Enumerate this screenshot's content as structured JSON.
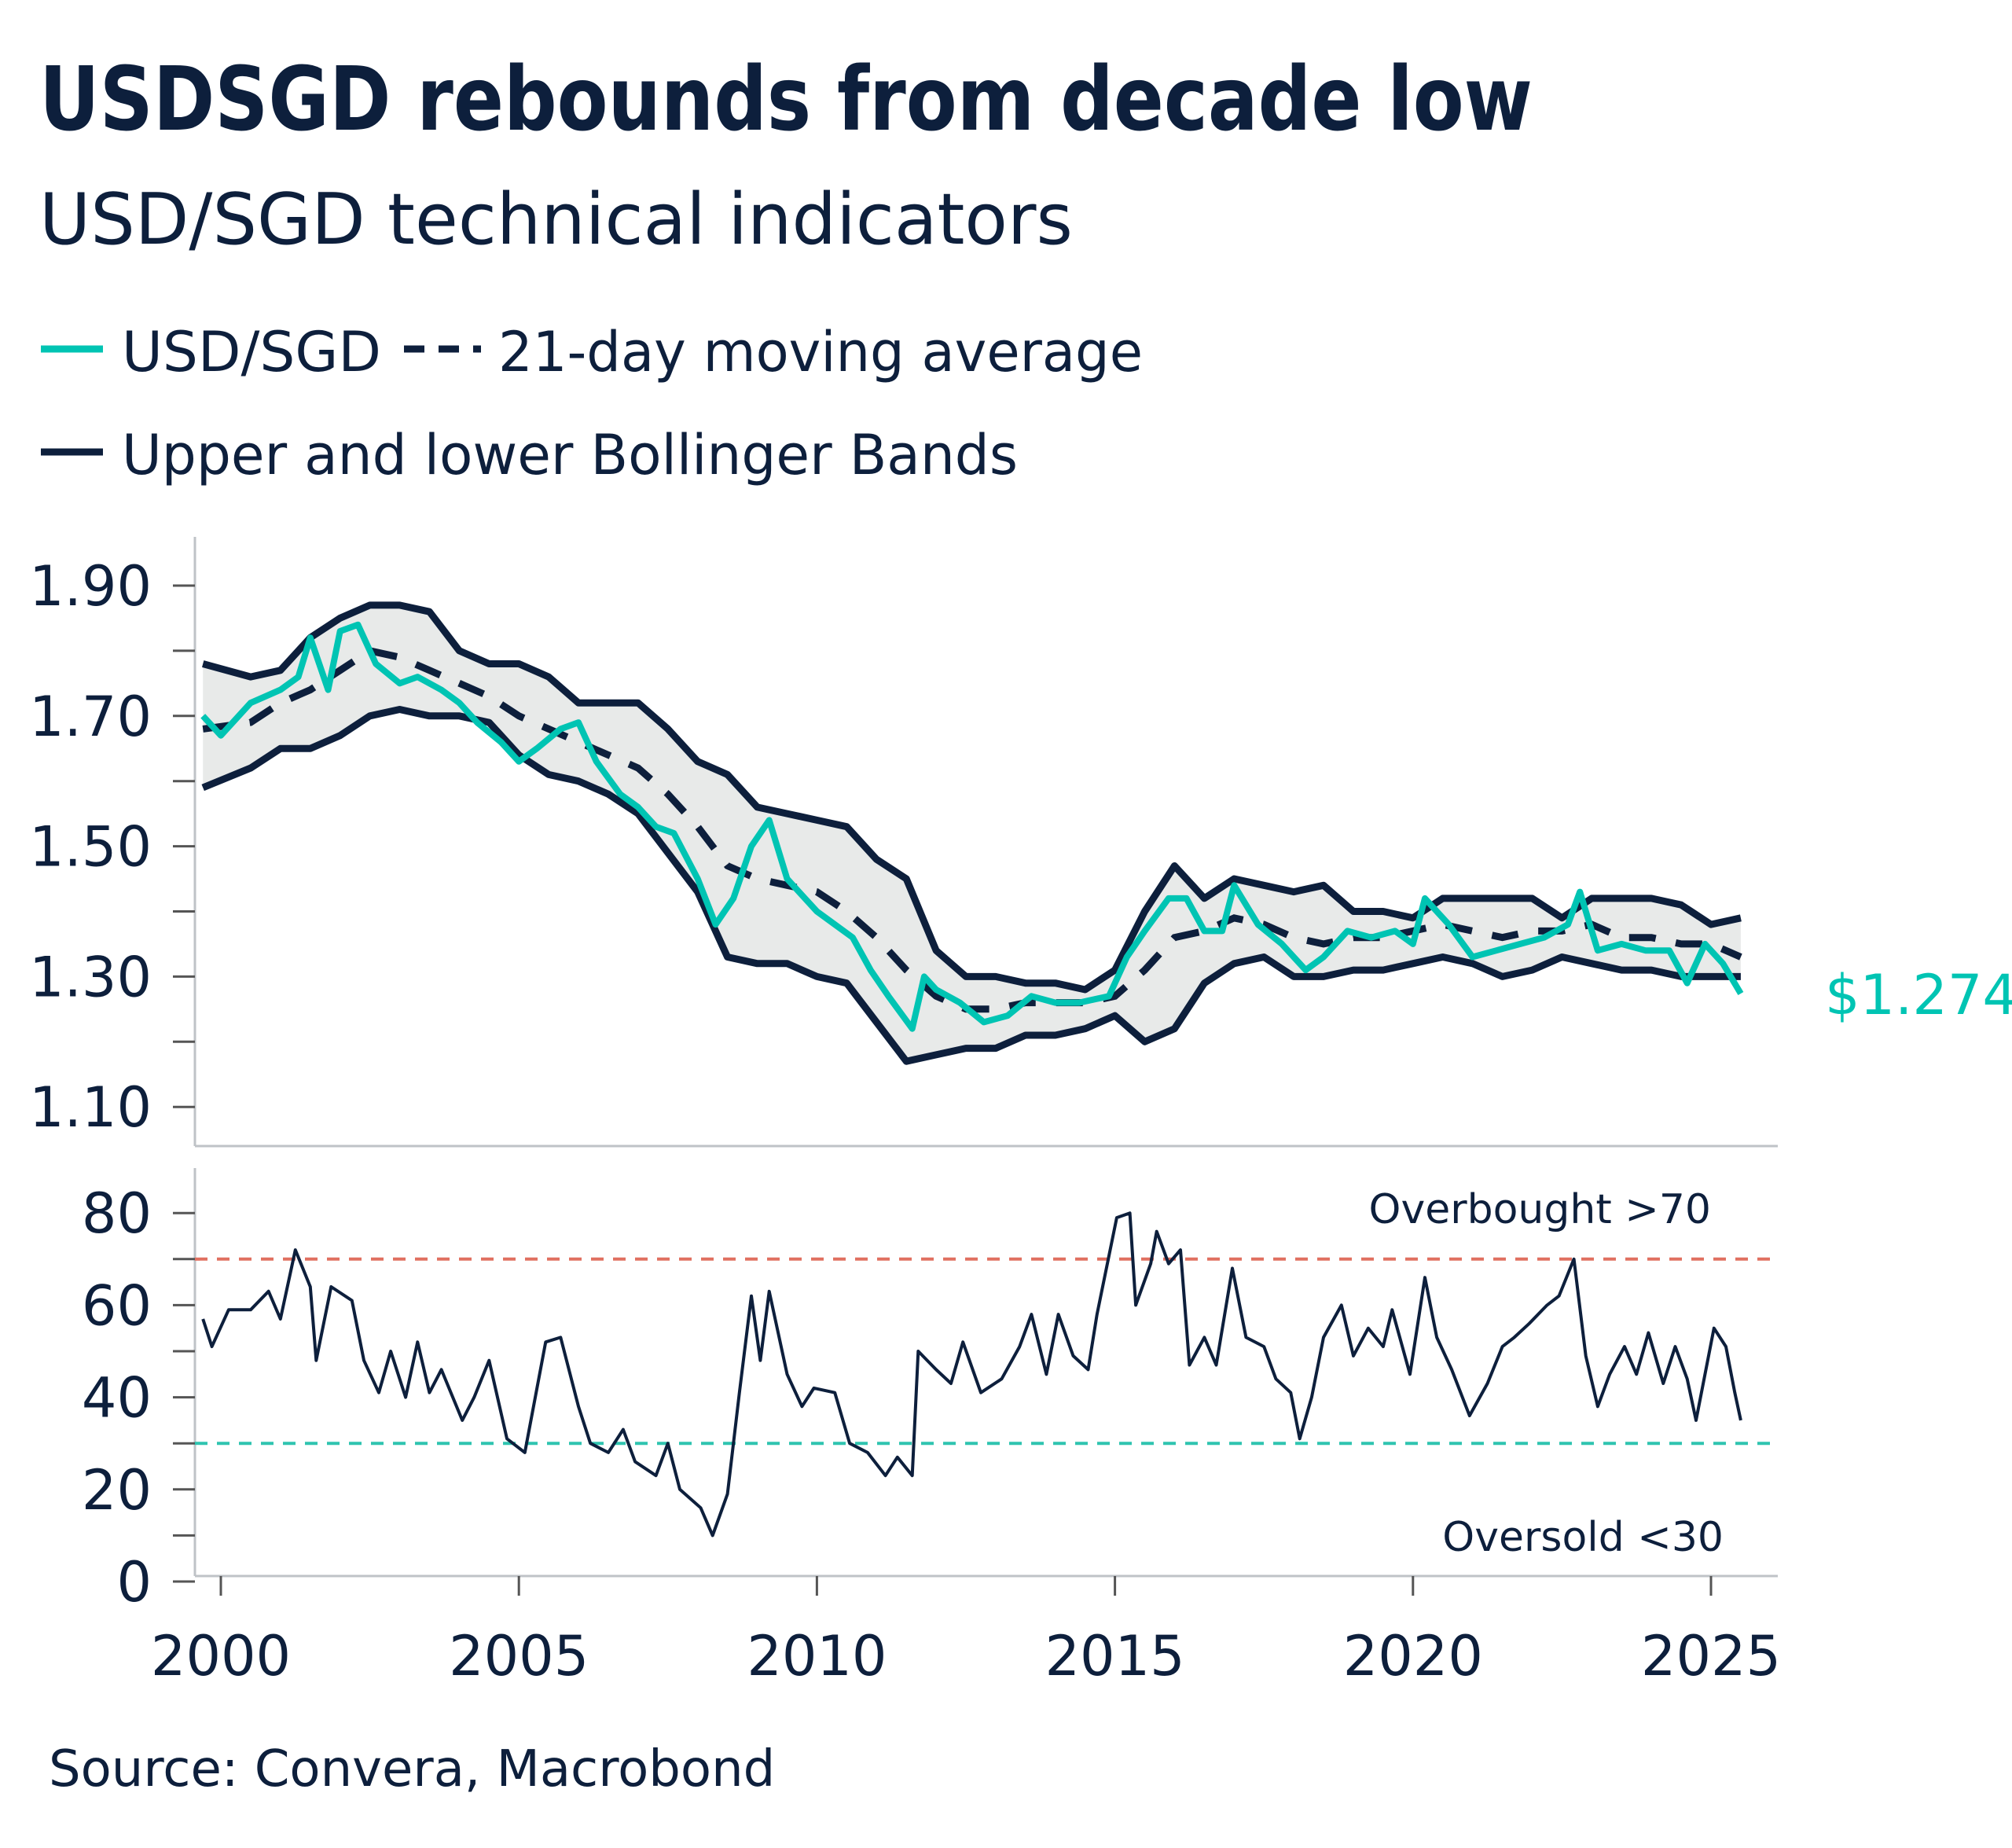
{
  "colors": {
    "navy": "#0d1f3c",
    "teal": "#00c4b3",
    "band_fill": "#e8eae9",
    "overbought": "#e07060",
    "oversold": "#2fc4b0"
  },
  "chart_data": [
    {
      "type": "line",
      "title": "USDSGD rebounds from decade low",
      "subtitle": "USD/SGD technical indicators",
      "legend": [
        "USD/SGD",
        "21-day moving average",
        "Upper and lower Bollinger Bands"
      ],
      "legend_placement": "top-left",
      "ylim": [
        1.05,
        1.97
      ],
      "yticks": [
        "1.90",
        "1.70",
        "1.50",
        "1.30",
        "1.10"
      ],
      "last_value_label": "$1.274",
      "series": [
        {
          "name": "USD/SGD",
          "color": "#00c4b3",
          "x": [
            1999.7,
            2000.0,
            2000.5,
            2001.0,
            2001.3,
            2001.5,
            2001.8,
            2002.0,
            2002.3,
            2002.6,
            2003.0,
            2003.3,
            2003.7,
            2004.0,
            2004.3,
            2004.7,
            2005.0,
            2005.3,
            2005.7,
            2006.0,
            2006.3,
            2006.7,
            2007.0,
            2007.3,
            2007.6,
            2008.0,
            2008.3,
            2008.6,
            2008.9,
            2009.2,
            2009.5,
            2009.8,
            2010.0,
            2010.3,
            2010.6,
            2010.9,
            2011.2,
            2011.6,
            2011.8,
            2012.0,
            2012.4,
            2012.8,
            2013.2,
            2013.6,
            2014.0,
            2014.4,
            2014.9,
            2015.2,
            2015.5,
            2015.9,
            2016.2,
            2016.5,
            2016.8,
            2017.0,
            2017.4,
            2017.8,
            2018.2,
            2018.5,
            2018.9,
            2019.3,
            2019.7,
            2020.0,
            2020.2,
            2020.6,
            2021.0,
            2021.4,
            2021.8,
            2022.2,
            2022.6,
            2022.8,
            2023.1,
            2023.5,
            2023.9,
            2024.3,
            2024.6,
            2024.9,
            2025.2,
            2025.5
          ],
          "values": [
            1.7,
            1.67,
            1.72,
            1.74,
            1.76,
            1.82,
            1.74,
            1.83,
            1.84,
            1.78,
            1.75,
            1.76,
            1.74,
            1.72,
            1.69,
            1.66,
            1.63,
            1.65,
            1.68,
            1.69,
            1.63,
            1.58,
            1.56,
            1.53,
            1.52,
            1.45,
            1.38,
            1.42,
            1.5,
            1.54,
            1.45,
            1.42,
            1.4,
            1.38,
            1.36,
            1.31,
            1.27,
            1.22,
            1.3,
            1.28,
            1.26,
            1.23,
            1.24,
            1.27,
            1.26,
            1.26,
            1.27,
            1.33,
            1.37,
            1.42,
            1.42,
            1.37,
            1.37,
            1.44,
            1.38,
            1.35,
            1.31,
            1.33,
            1.37,
            1.36,
            1.37,
            1.35,
            1.42,
            1.38,
            1.33,
            1.34,
            1.35,
            1.36,
            1.38,
            1.43,
            1.34,
            1.35,
            1.34,
            1.34,
            1.29,
            1.35,
            1.32,
            1.274
          ]
        },
        {
          "name": "21-day moving average",
          "color": "#0d1f3c",
          "x": [
            1999.7,
            2000.5,
            2001.0,
            2001.5,
            2002.0,
            2002.5,
            2003.0,
            2003.5,
            2004.0,
            2004.5,
            2005.0,
            2005.5,
            2006.0,
            2006.5,
            2007.0,
            2007.5,
            2008.0,
            2008.5,
            2009.0,
            2009.5,
            2010.0,
            2010.5,
            2011.0,
            2011.5,
            2012.0,
            2012.5,
            2013.0,
            2013.5,
            2014.0,
            2014.5,
            2015.0,
            2015.5,
            2016.0,
            2016.5,
            2017.0,
            2017.5,
            2018.0,
            2018.5,
            2019.0,
            2019.5,
            2020.0,
            2020.5,
            2021.0,
            2021.5,
            2022.0,
            2022.5,
            2023.0,
            2023.5,
            2024.0,
            2024.5,
            2025.0,
            2025.5
          ],
          "values": [
            1.68,
            1.69,
            1.72,
            1.74,
            1.77,
            1.8,
            1.79,
            1.77,
            1.75,
            1.73,
            1.7,
            1.68,
            1.66,
            1.64,
            1.62,
            1.58,
            1.53,
            1.47,
            1.45,
            1.44,
            1.43,
            1.4,
            1.36,
            1.31,
            1.27,
            1.25,
            1.25,
            1.26,
            1.26,
            1.26,
            1.27,
            1.31,
            1.36,
            1.37,
            1.39,
            1.38,
            1.36,
            1.35,
            1.36,
            1.36,
            1.37,
            1.38,
            1.37,
            1.36,
            1.37,
            1.37,
            1.38,
            1.36,
            1.36,
            1.35,
            1.35,
            1.33
          ]
        },
        {
          "name": "Upper Bollinger Band",
          "color": "#0d1f3c",
          "x": [
            1999.7,
            2000.5,
            2001.0,
            2001.5,
            2002.0,
            2002.5,
            2003.0,
            2003.5,
            2004.0,
            2004.5,
            2005.0,
            2005.5,
            2006.0,
            2006.5,
            2007.0,
            2007.5,
            2008.0,
            2008.5,
            2009.0,
            2009.5,
            2010.0,
            2010.5,
            2011.0,
            2011.5,
            2012.0,
            2012.5,
            2013.0,
            2013.5,
            2014.0,
            2014.5,
            2015.0,
            2015.5,
            2016.0,
            2016.5,
            2017.0,
            2017.5,
            2018.0,
            2018.5,
            2019.0,
            2019.5,
            2020.0,
            2020.5,
            2021.0,
            2021.5,
            2022.0,
            2022.5,
            2023.0,
            2023.5,
            2024.0,
            2024.5,
            2025.0,
            2025.5
          ],
          "values": [
            1.78,
            1.76,
            1.77,
            1.82,
            1.85,
            1.87,
            1.87,
            1.86,
            1.8,
            1.78,
            1.78,
            1.76,
            1.72,
            1.72,
            1.72,
            1.68,
            1.63,
            1.61,
            1.56,
            1.55,
            1.54,
            1.53,
            1.48,
            1.45,
            1.34,
            1.3,
            1.3,
            1.29,
            1.29,
            1.28,
            1.31,
            1.4,
            1.47,
            1.42,
            1.45,
            1.44,
            1.43,
            1.44,
            1.4,
            1.4,
            1.39,
            1.42,
            1.42,
            1.42,
            1.42,
            1.39,
            1.42,
            1.42,
            1.42,
            1.41,
            1.38,
            1.39
          ]
        },
        {
          "name": "Lower Bollinger Band",
          "color": "#0d1f3c",
          "x": [
            1999.7,
            2000.5,
            2001.0,
            2001.5,
            2002.0,
            2002.5,
            2003.0,
            2003.5,
            2004.0,
            2004.5,
            2005.0,
            2005.5,
            2006.0,
            2006.5,
            2007.0,
            2007.5,
            2008.0,
            2008.5,
            2009.0,
            2009.5,
            2010.0,
            2010.5,
            2011.0,
            2011.5,
            2012.0,
            2012.5,
            2013.0,
            2013.5,
            2014.0,
            2014.5,
            2015.0,
            2015.5,
            2016.0,
            2016.5,
            2017.0,
            2017.5,
            2018.0,
            2018.5,
            2019.0,
            2019.5,
            2020.0,
            2020.5,
            2021.0,
            2021.5,
            2022.0,
            2022.5,
            2023.0,
            2023.5,
            2024.0,
            2024.5,
            2025.0,
            2025.5
          ],
          "values": [
            1.59,
            1.62,
            1.65,
            1.65,
            1.67,
            1.7,
            1.71,
            1.7,
            1.7,
            1.69,
            1.64,
            1.61,
            1.6,
            1.58,
            1.55,
            1.49,
            1.43,
            1.33,
            1.32,
            1.32,
            1.3,
            1.29,
            1.23,
            1.17,
            1.18,
            1.19,
            1.19,
            1.21,
            1.21,
            1.22,
            1.24,
            1.2,
            1.22,
            1.29,
            1.32,
            1.33,
            1.3,
            1.3,
            1.31,
            1.31,
            1.32,
            1.33,
            1.32,
            1.3,
            1.31,
            1.33,
            1.32,
            1.31,
            1.31,
            1.3,
            1.3,
            1.3
          ]
        }
      ]
    },
    {
      "type": "line",
      "ylim": [
        0,
        90
      ],
      "yticks": [
        "80",
        "60",
        "40",
        "20",
        "0"
      ],
      "xticks": [
        "2000",
        "2005",
        "2010",
        "2015",
        "2020",
        "2025"
      ],
      "thresholds": [
        {
          "value": 70,
          "label": "Overbought >70",
          "color": "#e07060"
        },
        {
          "value": 30,
          "label": "Oversold <30",
          "color": "#2fc4b0"
        }
      ],
      "series": [
        {
          "color": "#0d1f3c",
          "x": [
            1999.7,
            1999.85,
            2000.13,
            2000.5,
            2000.8,
            2001.0,
            2001.25,
            2001.5,
            2001.6,
            2001.85,
            2002.2,
            2002.4,
            2002.65,
            2002.85,
            2003.1,
            2003.3,
            2003.5,
            2003.7,
            2004.05,
            2004.25,
            2004.5,
            2004.8,
            2005.1,
            2005.45,
            2005.7,
            2006.0,
            2006.2,
            2006.5,
            2006.75,
            2006.95,
            2007.3,
            2007.5,
            2007.7,
            2008.05,
            2008.25,
            2008.5,
            2008.7,
            2008.9,
            2009.05,
            2009.2,
            2009.5,
            2009.75,
            2009.95,
            2010.3,
            2010.55,
            2010.85,
            2011.15,
            2011.35,
            2011.6,
            2011.7,
            2012.0,
            2012.25,
            2012.45,
            2012.75,
            2013.1,
            2013.4,
            2013.6,
            2013.85,
            2014.05,
            2014.3,
            2014.55,
            2014.7,
            2015.03,
            2015.25,
            2015.35,
            2015.6,
            2015.7,
            2015.9,
            2016.1,
            2016.25,
            2016.5,
            2016.7,
            2016.97,
            2017.2,
            2017.5,
            2017.7,
            2017.95,
            2018.1,
            2018.3,
            2018.5,
            2018.8,
            2019.0,
            2019.25,
            2019.5,
            2019.65,
            2019.95,
            2020.2,
            2020.4,
            2020.65,
            2020.95,
            2021.25,
            2021.5,
            2021.7,
            2021.95,
            2022.25,
            2022.45,
            2022.7,
            2022.9,
            2023.1,
            2023.3,
            2023.55,
            2023.75,
            2023.95,
            2024.2,
            2024.4,
            2024.6,
            2024.75,
            2025.05,
            2025.25,
            2025.4,
            2025.5
          ],
          "values": [
            57,
            51,
            59,
            59,
            63,
            57,
            72,
            64,
            48,
            64,
            61,
            48,
            41,
            50,
            40,
            52,
            41,
            46,
            35,
            40,
            48,
            31,
            28,
            52,
            53,
            38,
            30,
            28,
            33,
            26,
            23,
            30,
            20,
            16,
            10,
            19,
            41,
            62,
            48,
            63,
            45,
            38,
            42,
            41,
            30,
            28,
            23,
            27,
            23,
            50,
            46,
            43,
            52,
            41,
            44,
            51,
            58,
            45,
            58,
            49,
            46,
            58,
            79,
            80,
            60,
            69,
            76,
            69,
            72,
            47,
            53,
            47,
            68,
            53,
            51,
            44,
            41,
            31,
            40,
            53,
            60,
            49,
            55,
            51,
            59,
            45,
            66,
            53,
            46,
            36,
            43,
            51,
            53,
            56,
            60,
            62,
            70,
            49,
            38,
            45,
            51,
            45,
            54,
            43,
            51,
            44,
            35,
            55,
            51,
            41,
            35
          ]
        }
      ]
    }
  ],
  "source": "Source: Convera, Macrobond"
}
